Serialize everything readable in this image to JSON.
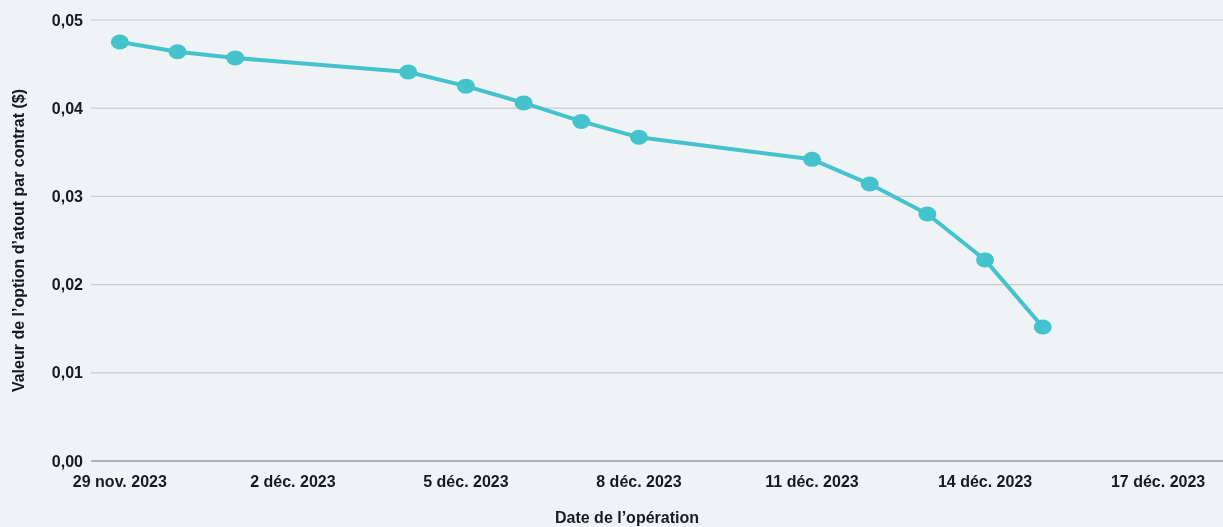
{
  "chart_data": {
    "type": "line",
    "xlabel": "Date de l’opération",
    "ylabel": "Valeur de l’option d’atout par contrat ($)",
    "x": [
      "2023-11-29",
      "2023-11-30",
      "2023-12-01",
      "2023-12-04",
      "2023-12-05",
      "2023-12-06",
      "2023-12-07",
      "2023-12-08",
      "2023-12-11",
      "2023-12-12",
      "2023-12-13",
      "2023-12-14",
      "2023-12-15"
    ],
    "series": [
      {
        "color": "#45c3cc",
        "values": [
          0.0475,
          0.0464,
          0.0457,
          0.0441,
          0.0425,
          0.0406,
          0.0385,
          0.0367,
          0.0342,
          0.0314,
          0.028,
          0.0228,
          0.0152
        ]
      }
    ],
    "xlim": [
      "2023-11-28T12:00",
      "2023-12-18T03:00"
    ],
    "xticks": [
      {
        "value": "2023-11-29",
        "label": "29 nov. 2023"
      },
      {
        "value": "2023-12-02",
        "label": "2 déc. 2023"
      },
      {
        "value": "2023-12-05",
        "label": "5 déc. 2023"
      },
      {
        "value": "2023-12-08",
        "label": "8 déc. 2023"
      },
      {
        "value": "2023-12-11",
        "label": "11 déc. 2023"
      },
      {
        "value": "2023-12-14",
        "label": "14 déc. 2023"
      },
      {
        "value": "2023-12-17",
        "label": "17 déc. 2023"
      }
    ],
    "ylim": [
      0,
      0.05
    ],
    "yticks": [
      {
        "value": 0,
        "label": "0,00"
      },
      {
        "value": 0.01,
        "label": "0,01"
      },
      {
        "value": 0.02,
        "label": "0,02"
      },
      {
        "value": 0.03,
        "label": "0,03"
      },
      {
        "value": 0.04,
        "label": "0,04"
      },
      {
        "value": 0.05,
        "label": "0,05"
      }
    ],
    "grid": "y",
    "marker": "circle",
    "line_style": "solid"
  }
}
